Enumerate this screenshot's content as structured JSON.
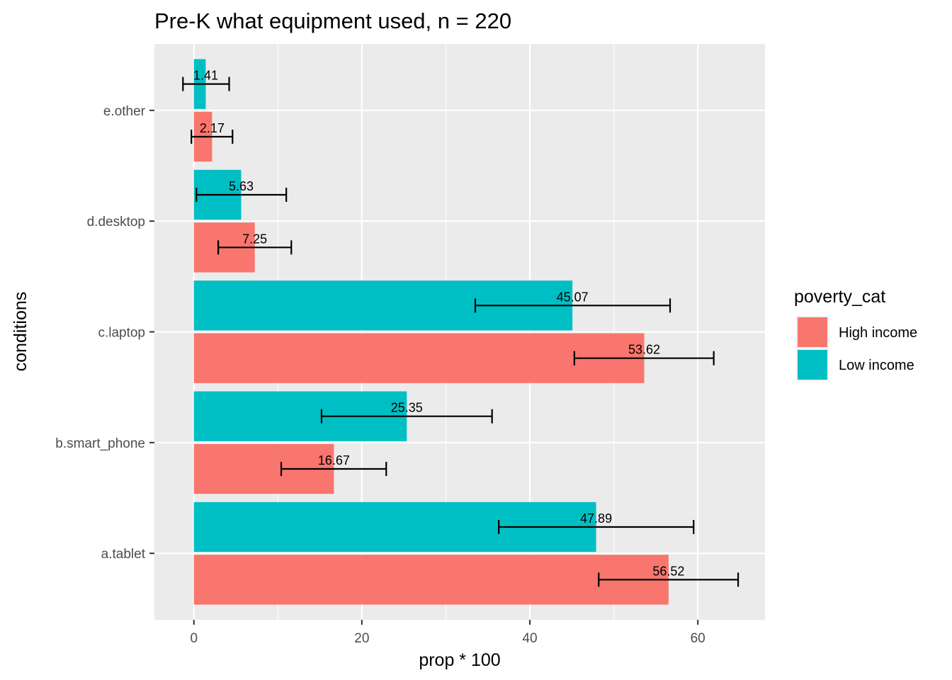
{
  "chart_data": {
    "type": "bar",
    "orientation": "horizontal",
    "title": "Pre-K what equipment used, n = 220",
    "xlabel": "prop * 100",
    "ylabel": "conditions",
    "xlim": [
      -4.7,
      68.0
    ],
    "xticks": [
      0,
      20,
      40,
      60
    ],
    "categories": [
      "a.tablet",
      "b.smart_phone",
      "c.laptop",
      "d.desktop",
      "e.other"
    ],
    "grid": true,
    "legend": {
      "title": "poverty_cat",
      "placement": "right"
    },
    "series": [
      {
        "name": "High income",
        "color": "#F8766D",
        "values": [
          56.52,
          16.67,
          53.62,
          7.25,
          2.17
        ],
        "labels": [
          "56.52",
          "16.67",
          "53.62",
          "7.25",
          "2.17"
        ],
        "err_low": [
          48.2,
          10.4,
          45.3,
          2.9,
          -0.3
        ],
        "err_high": [
          64.8,
          22.9,
          61.9,
          11.6,
          4.6
        ]
      },
      {
        "name": "Low income",
        "color": "#00BFC4",
        "values": [
          47.89,
          25.35,
          45.07,
          5.63,
          1.41
        ],
        "labels": [
          "47.89",
          "25.35",
          "45.07",
          "5.63",
          "1.41"
        ],
        "err_low": [
          36.3,
          15.2,
          33.5,
          0.3,
          -1.3
        ],
        "err_high": [
          59.5,
          35.5,
          56.7,
          11.0,
          4.2
        ]
      }
    ]
  }
}
